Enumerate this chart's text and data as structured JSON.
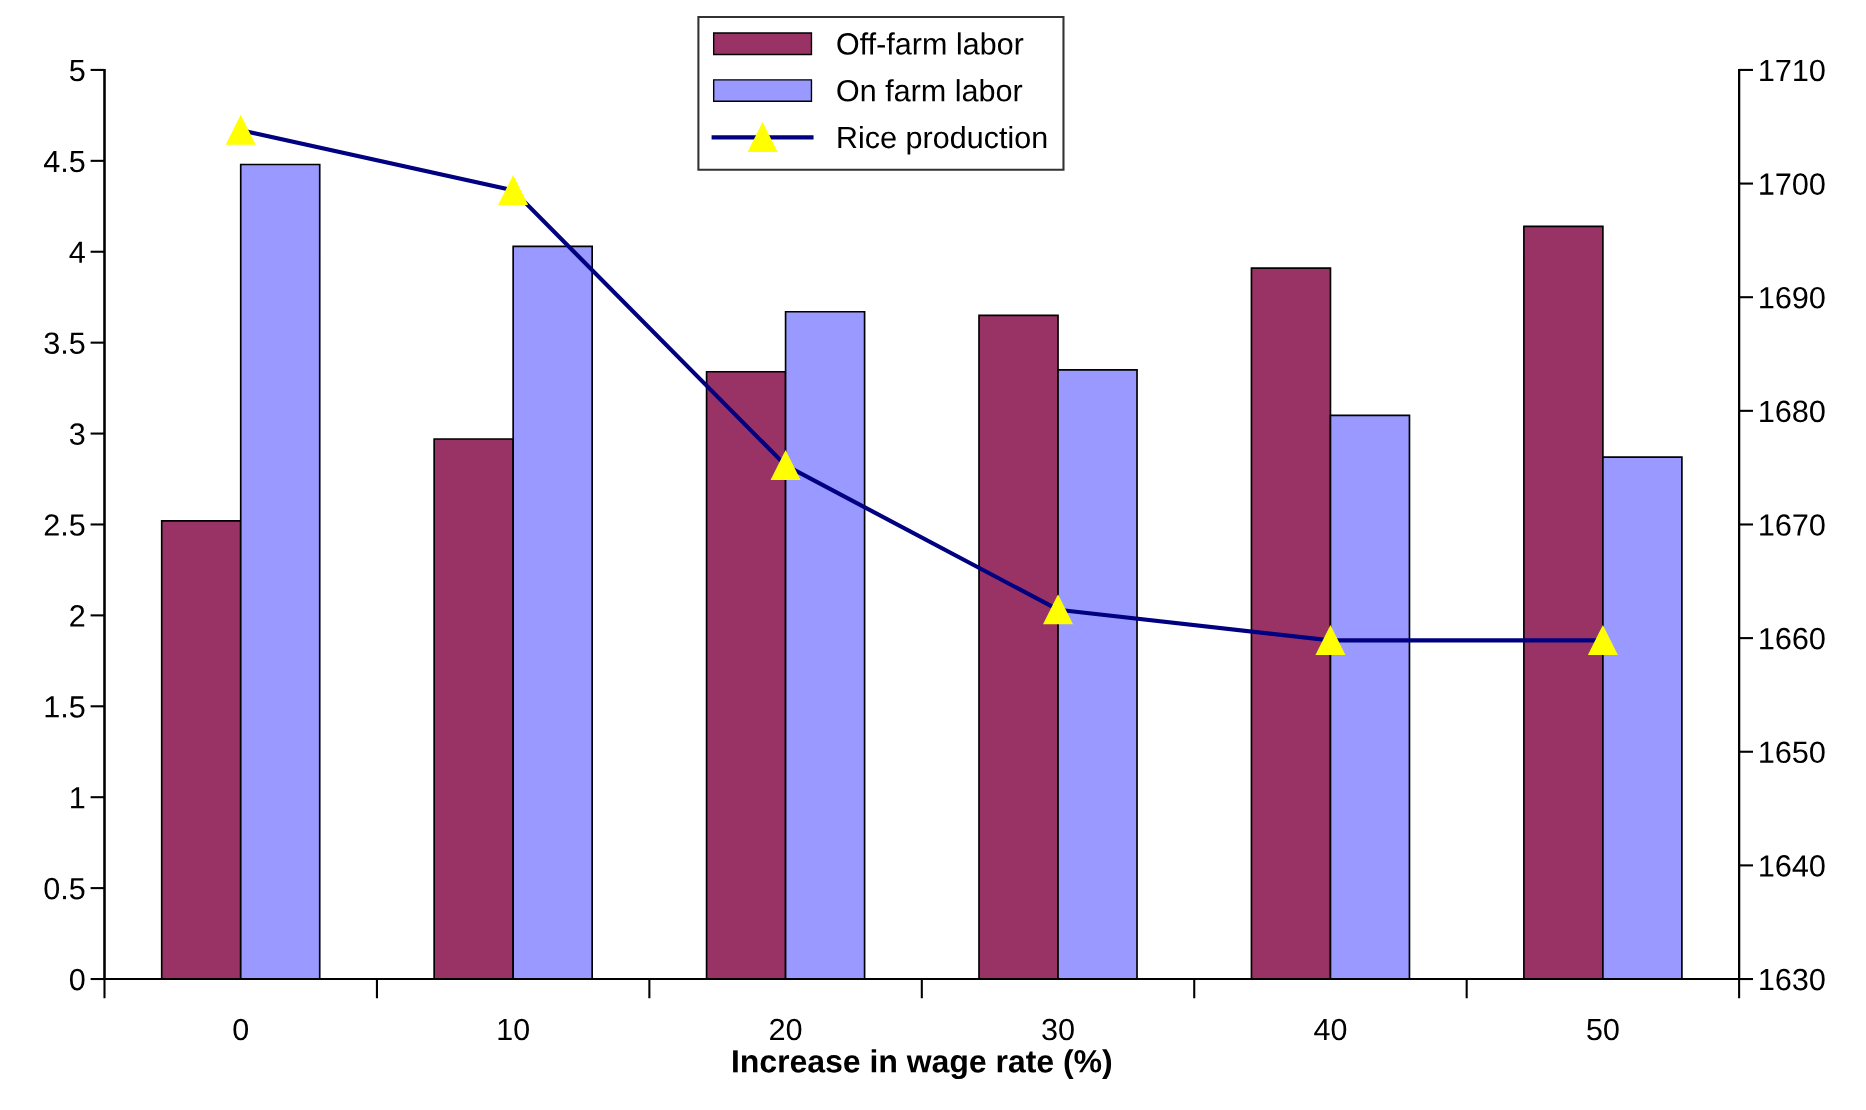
{
  "chart_data": {
    "type": "bar",
    "xlabel": "Increase in wage rate (%)",
    "categories": [
      "0",
      "10",
      "20",
      "30",
      "40",
      "50"
    ],
    "series": [
      {
        "name": "Off-farm labor",
        "color": "#993366",
        "values": [
          2.52,
          2.97,
          3.34,
          3.65,
          3.91,
          4.14
        ]
      },
      {
        "name": "On farm labor",
        "color": "#9999ff",
        "values": [
          4.48,
          4.03,
          3.67,
          3.35,
          3.1,
          2.87
        ]
      },
      {
        "name": "Rice production",
        "type": "line",
        "axis": "y2",
        "color": "#000080",
        "marker": "triangle",
        "values": [
          1704.7,
          1699.4,
          1675.2,
          1662.5,
          1659.8,
          1659.8
        ]
      }
    ],
    "ylim": [
      0,
      5
    ],
    "yticks": [
      0,
      0.5,
      1,
      1.5,
      2,
      2.5,
      3,
      3.5,
      4,
      4.5,
      5
    ],
    "y2lim": [
      1630,
      1710
    ],
    "y2ticks": [
      1630,
      1640,
      1650,
      1660,
      1670,
      1680,
      1690,
      1700,
      1710
    ],
    "legend": "top",
    "grid": false
  }
}
